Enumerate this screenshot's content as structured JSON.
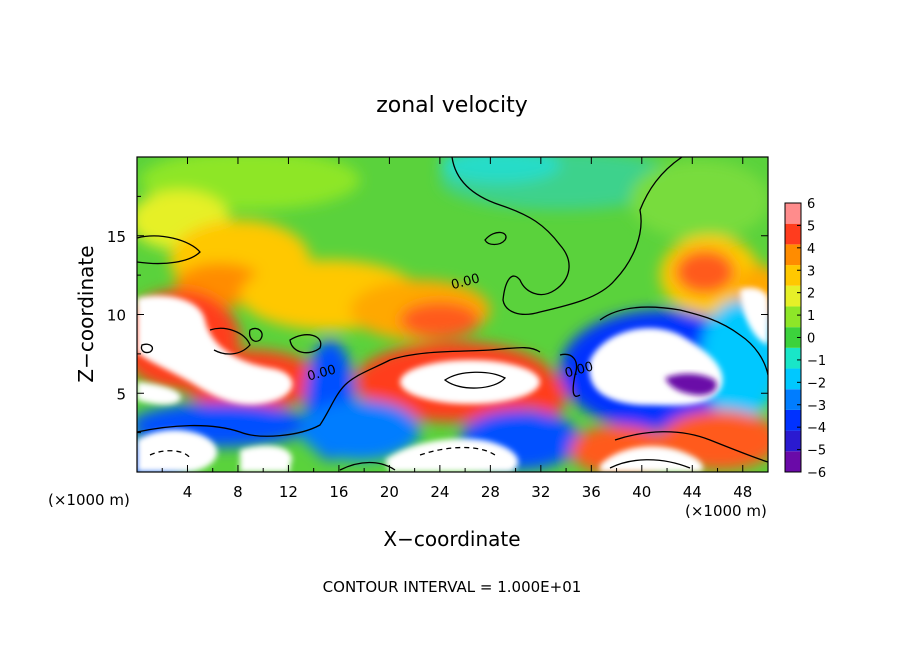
{
  "chart_data": {
    "type": "heatmap",
    "title": "zonal velocity",
    "xlabel": "X−coordinate",
    "ylabel": "Z−coordinate",
    "x_unit_left": "(×1000 m)",
    "x_unit_right": "(×1000 m)",
    "footer": "CONTOUR INTERVAL = 1.000E+01",
    "xlim": [
      0,
      50
    ],
    "ylim": [
      0,
      20
    ],
    "x_ticks": [
      4,
      8,
      12,
      16,
      20,
      24,
      28,
      32,
      36,
      40,
      44,
      48
    ],
    "y_ticks": [
      5,
      10,
      15
    ],
    "colorbar": {
      "min": -6,
      "max": 6,
      "ticks": [
        6,
        5,
        4,
        3,
        2,
        1,
        0,
        -1,
        -2,
        -3,
        -4,
        -5,
        -6
      ],
      "labels": [
        "6",
        "5",
        "4",
        "3",
        "2",
        "1",
        "0",
        "−1",
        "−2",
        "−3",
        "−4",
        "−5",
        "−6"
      ],
      "colors": [
        "#6a0aa8",
        "#2a1ad0",
        "#0032ff",
        "#007dff",
        "#00c8ff",
        "#19e6c8",
        "#3cd23c",
        "#8ee628",
        "#e6f028",
        "#ffc800",
        "#ff8c00",
        "#ff3c1e",
        "#ff8c8c"
      ]
    },
    "contour_labels": [
      {
        "text": "0.00",
        "x": 25.0,
        "y": 11.6
      },
      {
        "text": "0.00",
        "x": 13.6,
        "y": 5.8
      },
      {
        "text": "0.00",
        "x": 34.0,
        "y": 6.0
      }
    ]
  }
}
